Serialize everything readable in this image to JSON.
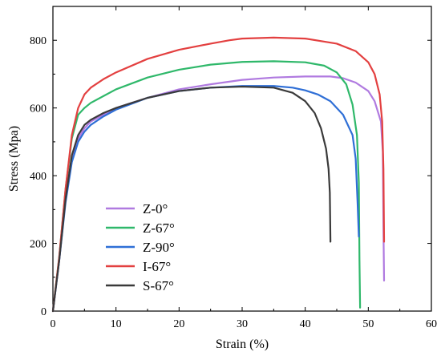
{
  "chart_data": {
    "type": "line",
    "title": "",
    "xlabel": "Strain (%)",
    "ylabel": "Stress (Mpa)",
    "xlim": [
      0,
      60
    ],
    "ylim": [
      0,
      900
    ],
    "xticks": [
      0,
      10,
      20,
      30,
      40,
      50,
      60
    ],
    "yticks": [
      0,
      200,
      400,
      600,
      800
    ],
    "grid": false,
    "legend_position": "center-left",
    "series": [
      {
        "name": "Z-0°",
        "color": "#b07ae0",
        "x": [
          0,
          1,
          2,
          3,
          4,
          5,
          6,
          8,
          10,
          15,
          20,
          25,
          30,
          35,
          40,
          44,
          46,
          48,
          50,
          51,
          52,
          52.3,
          52.4,
          52.5
        ],
        "y": [
          0,
          150,
          330,
          450,
          510,
          540,
          560,
          580,
          600,
          630,
          655,
          670,
          683,
          690,
          693,
          693,
          688,
          675,
          650,
          620,
          560,
          470,
          250,
          90
        ]
      },
      {
        "name": "Z-67°",
        "color": "#2fb86a",
        "x": [
          0,
          1,
          2,
          3,
          4,
          5,
          6,
          8,
          10,
          15,
          20,
          25,
          30,
          35,
          40,
          43,
          45,
          46.5,
          47.5,
          48.2,
          48.5,
          48.6,
          48.7
        ],
        "y": [
          0,
          160,
          360,
          510,
          580,
          600,
          615,
          635,
          655,
          690,
          713,
          728,
          736,
          738,
          735,
          725,
          705,
          670,
          610,
          520,
          380,
          150,
          10
        ]
      },
      {
        "name": "Z-90°",
        "color": "#2f6fd6",
        "x": [
          0,
          1,
          2,
          3,
          4,
          5,
          6,
          8,
          10,
          15,
          20,
          25,
          30,
          35,
          38,
          40,
          42,
          44,
          46,
          47.5,
          48,
          48.3,
          48.5
        ],
        "y": [
          0,
          150,
          320,
          440,
          500,
          530,
          550,
          575,
          595,
          630,
          650,
          660,
          665,
          665,
          660,
          652,
          640,
          620,
          580,
          520,
          450,
          320,
          220
        ]
      },
      {
        "name": "I-67°",
        "color": "#e34040",
        "x": [
          0,
          1,
          2,
          3,
          4,
          5,
          6,
          8,
          10,
          15,
          20,
          25,
          28,
          30,
          35,
          40,
          45,
          48,
          50,
          51,
          51.8,
          52.2,
          52.4,
          52.5
        ],
        "y": [
          0,
          160,
          360,
          520,
          600,
          640,
          660,
          685,
          705,
          745,
          772,
          790,
          800,
          805,
          808,
          805,
          790,
          768,
          735,
          700,
          640,
          560,
          420,
          205
        ]
      },
      {
        "name": "S-67°",
        "color": "#3a3a3a",
        "x": [
          0,
          1,
          2,
          3,
          4,
          5,
          6,
          8,
          10,
          15,
          20,
          25,
          30,
          35,
          38,
          40,
          41.5,
          42.5,
          43.3,
          43.7,
          43.9,
          44
        ],
        "y": [
          0,
          150,
          330,
          460,
          520,
          550,
          565,
          585,
          600,
          630,
          650,
          660,
          663,
          660,
          645,
          620,
          585,
          540,
          480,
          420,
          350,
          205
        ]
      }
    ]
  }
}
